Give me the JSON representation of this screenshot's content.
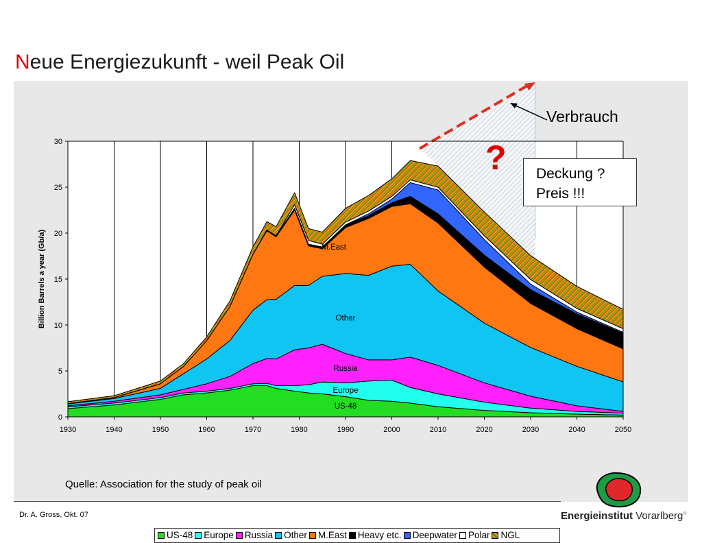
{
  "slide": {
    "title_first": "N",
    "title_rest": "eue Energiezukunft - weil Peak Oil",
    "source": "Quelle: Association for the study of peak oil",
    "author": "Dr. A. Gross, Okt. 07",
    "brand_bold": "Energieinstitut",
    "brand_regular": "Vorarlberg",
    "brand_mark": "®"
  },
  "callouts": {
    "verbrauch": "Verbrauch",
    "question": "?",
    "box_line1": "Deckung ?",
    "box_line2": "Preis !!!"
  },
  "colors": {
    "US-48": "#22dd22",
    "Europe": "#22ffee",
    "Russia": "#ff22ff",
    "Other": "#11c5f2",
    "M.East": "#ff7711",
    "Heavy etc.": "#000000",
    "Deepwater": "#3366ff",
    "Polar": "#ffffff",
    "NGL": "#cc8800",
    "arrow": "#e03020",
    "question": "#e00000"
  },
  "chart_data": {
    "type": "area",
    "stacked": true,
    "ylabel": "Billion Barrels a year (Gb/a)",
    "xlabel": "",
    "xlim": [
      1930,
      2050
    ],
    "ylim": [
      0,
      30
    ],
    "x_ticks": [
      1930,
      1940,
      1950,
      1960,
      1970,
      1980,
      1990,
      2000,
      2010,
      2020,
      2030,
      2040,
      2050
    ],
    "y_ticks": [
      0,
      5,
      10,
      15,
      20,
      25,
      30
    ],
    "grid": "vertical",
    "legend_position": "bottom",
    "x": [
      1930,
      1940,
      1950,
      1955,
      1960,
      1965,
      1970,
      1973,
      1975,
      1979,
      1982,
      1985,
      1990,
      1995,
      2000,
      2004,
      2010,
      2020,
      2030,
      2040,
      2050
    ],
    "series": [
      {
        "name": "US-48",
        "values": [
          0.9,
          1.3,
          1.9,
          2.4,
          2.6,
          2.9,
          3.4,
          3.4,
          3.1,
          2.8,
          2.6,
          2.5,
          2.2,
          1.8,
          1.7,
          1.5,
          1.1,
          0.7,
          0.45,
          0.3,
          0.2
        ]
      },
      {
        "name": "Europe",
        "values": [
          0.2,
          0.2,
          0.2,
          0.2,
          0.2,
          0.2,
          0.2,
          0.25,
          0.3,
          0.6,
          0.9,
          1.3,
          1.5,
          2.1,
          2.3,
          1.7,
          1.4,
          0.9,
          0.5,
          0.3,
          0.2
        ]
      },
      {
        "name": "Russia",
        "values": [
          0.1,
          0.2,
          0.3,
          0.4,
          0.8,
          1.3,
          2.2,
          2.7,
          2.9,
          3.9,
          4.0,
          4.1,
          3.2,
          2.3,
          2.2,
          3.3,
          3.1,
          2.1,
          1.3,
          0.6,
          0.2
        ]
      },
      {
        "name": "Other",
        "values": [
          0.2,
          0.3,
          0.7,
          1.7,
          2.7,
          3.9,
          5.8,
          6.4,
          6.5,
          7.0,
          6.8,
          7.4,
          8.7,
          9.2,
          10.2,
          10.1,
          8.1,
          6.5,
          5.3,
          4.3,
          3.2
        ]
      },
      {
        "name": "M.East",
        "values": [
          0.05,
          0.1,
          0.5,
          0.8,
          2.0,
          3.7,
          6.1,
          7.5,
          6.8,
          8.2,
          4.3,
          3.0,
          5.0,
          6.2,
          6.5,
          6.6,
          7.4,
          6.1,
          4.8,
          4.1,
          3.6
        ]
      },
      {
        "name": "Heavy etc.",
        "values": [
          0,
          0,
          0,
          0,
          0,
          0,
          0,
          0.1,
          0.1,
          0.2,
          0.2,
          0.2,
          0.3,
          0.3,
          0.4,
          0.8,
          1.0,
          1.3,
          1.5,
          1.6,
          1.7
        ]
      },
      {
        "name": "Deepwater",
        "values": [
          0,
          0,
          0,
          0,
          0,
          0,
          0,
          0,
          0,
          0,
          0,
          0,
          0,
          0.2,
          0.4,
          1.5,
          2.6,
          1.7,
          0.6,
          0.2,
          0.1
        ]
      },
      {
        "name": "Polar",
        "values": [
          0,
          0,
          0,
          0,
          0,
          0,
          0,
          0,
          0,
          0.4,
          0.4,
          0.3,
          0.3,
          0.3,
          0.3,
          0.3,
          0.3,
          0.4,
          0.5,
          0.4,
          0.4
        ]
      },
      {
        "name": "NGL",
        "values": [
          0.2,
          0.2,
          0.3,
          0.3,
          0.4,
          0.6,
          0.8,
          0.9,
          1.0,
          1.3,
          1.3,
          1.3,
          1.5,
          1.7,
          1.9,
          2.1,
          2.3,
          2.6,
          2.6,
          2.4,
          2.1
        ]
      }
    ],
    "area_labels": [
      {
        "text": "M.East",
        "x": 1987.5,
        "y": 18.2
      },
      {
        "text": "Other",
        "x": 1990,
        "y": 10.5
      },
      {
        "text": "Russia",
        "x": 1990,
        "y": 5.0
      },
      {
        "text": "Europe",
        "x": 1990,
        "y": 2.6
      },
      {
        "text": "US-48",
        "x": 1990,
        "y": 0.9
      }
    ],
    "projection": {
      "label": "Verbrauch",
      "start": {
        "x": 2006,
        "y": 29.2
      },
      "end": {
        "x": 2031,
        "y": 36.5
      }
    }
  }
}
